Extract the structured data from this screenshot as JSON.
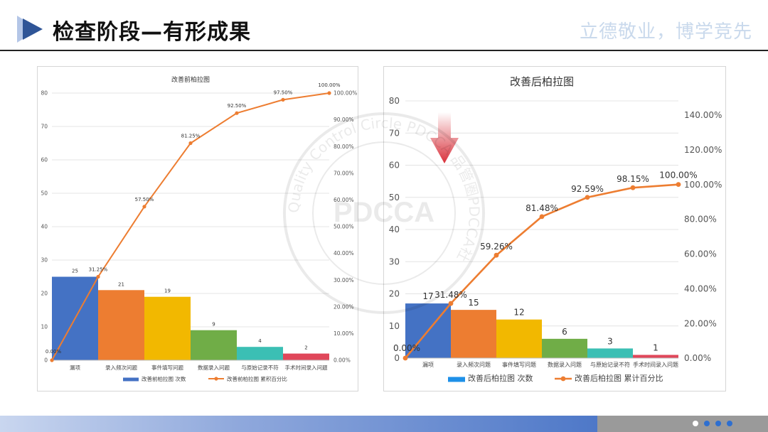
{
  "header": {
    "title": "检查阶段—有形成果",
    "motto": "立德敬业，博学竞先"
  },
  "watermark": {
    "center_text": "PDCCA",
    "ring_text": "Quality Control Circle PDCCA 品管圈PDCCA社"
  },
  "colors": {
    "bars": [
      "#4472c4",
      "#ed7d31",
      "#f2b800",
      "#70ad47",
      "#3bbfb4",
      "#e0475a"
    ],
    "line": "#ed7d31",
    "legend_bar_left": "#4472c4",
    "legend_bar_right": "#1e90e8",
    "arrow": "#d9303a"
  },
  "chart_data": [
    {
      "type": "bar",
      "title": "改善前柏拉图",
      "categories": [
        "漏项",
        "录入频次问题",
        "事件填写问题",
        "数据录入问题",
        "与原始记录不符",
        "手术时间录入问题"
      ],
      "series": [
        {
          "name": "改善前柏拉图 次数",
          "type": "bar",
          "axis": "left",
          "values": [
            25,
            21,
            19,
            9,
            4,
            2
          ]
        },
        {
          "name": "改善前柏拉图 累积百分比",
          "type": "line",
          "axis": "right",
          "points": [
            [
              0,
              0
            ],
            [
              1,
              31.25
            ],
            [
              2,
              57.5
            ],
            [
              3,
              81.25
            ],
            [
              4,
              92.5
            ],
            [
              5,
              97.5
            ],
            [
              6,
              100.0
            ]
          ],
          "labels": [
            "0.00%",
            "31.25%",
            "57.50%",
            "81.25%",
            "92.50%",
            "97.50%",
            "100.00%"
          ]
        }
      ],
      "y_left": {
        "min": 0,
        "max": 80,
        "ticks": [
          "0",
          "10",
          "20",
          "30",
          "40",
          "50",
          "60",
          "70",
          "80"
        ]
      },
      "y_right": {
        "min": 0,
        "max": 100,
        "ticks": [
          "0.00%",
          "10.00%",
          "20.00%",
          "30.00%",
          "40.00%",
          "50.00%",
          "60.00%",
          "70.00%",
          "80.00%",
          "90.00%",
          "100.00%"
        ]
      },
      "legend_placement": "bottom",
      "grid": true
    },
    {
      "type": "bar",
      "title": "改善后柏拉图",
      "categories": [
        "漏项",
        "录入频次问题",
        "事件填写问题",
        "数据录入问题",
        "与原始记录不符",
        "手术时间录入问题"
      ],
      "series": [
        {
          "name": "改善后柏拉图 次数",
          "type": "bar",
          "axis": "left",
          "values": [
            17,
            15,
            12,
            6,
            3,
            1
          ]
        },
        {
          "name": "改善后柏拉图 累计百分比",
          "type": "line",
          "axis": "right",
          "points": [
            [
              0,
              0
            ],
            [
              1,
              31.48
            ],
            [
              2,
              59.26
            ],
            [
              3,
              81.48
            ],
            [
              4,
              92.59
            ],
            [
              5,
              98.15
            ],
            [
              6,
              100.0
            ]
          ],
          "labels": [
            "0.00%",
            "31.48%",
            "59.26%",
            "81.48%",
            "92.59%",
            "98.15%",
            "100.00%"
          ]
        }
      ],
      "y_left": {
        "min": 0,
        "max": 80,
        "ticks": [
          "0",
          "10",
          "20",
          "30",
          "40",
          "50",
          "60",
          "70",
          "80"
        ]
      },
      "y_right": {
        "min": 0,
        "max": 148.15,
        "ticks": [
          "0.00%",
          "20.00%",
          "40.00%",
          "60.00%",
          "80.00%",
          "100.00%",
          "120.00%",
          "140.00%"
        ]
      },
      "legend_placement": "bottom",
      "grid": true,
      "annotation": "red-down-arrow"
    }
  ],
  "footer": {
    "dot_colors": [
      "#ffffff",
      "#2e6fd0",
      "#2e6fd0",
      "#2e6fd0"
    ]
  }
}
